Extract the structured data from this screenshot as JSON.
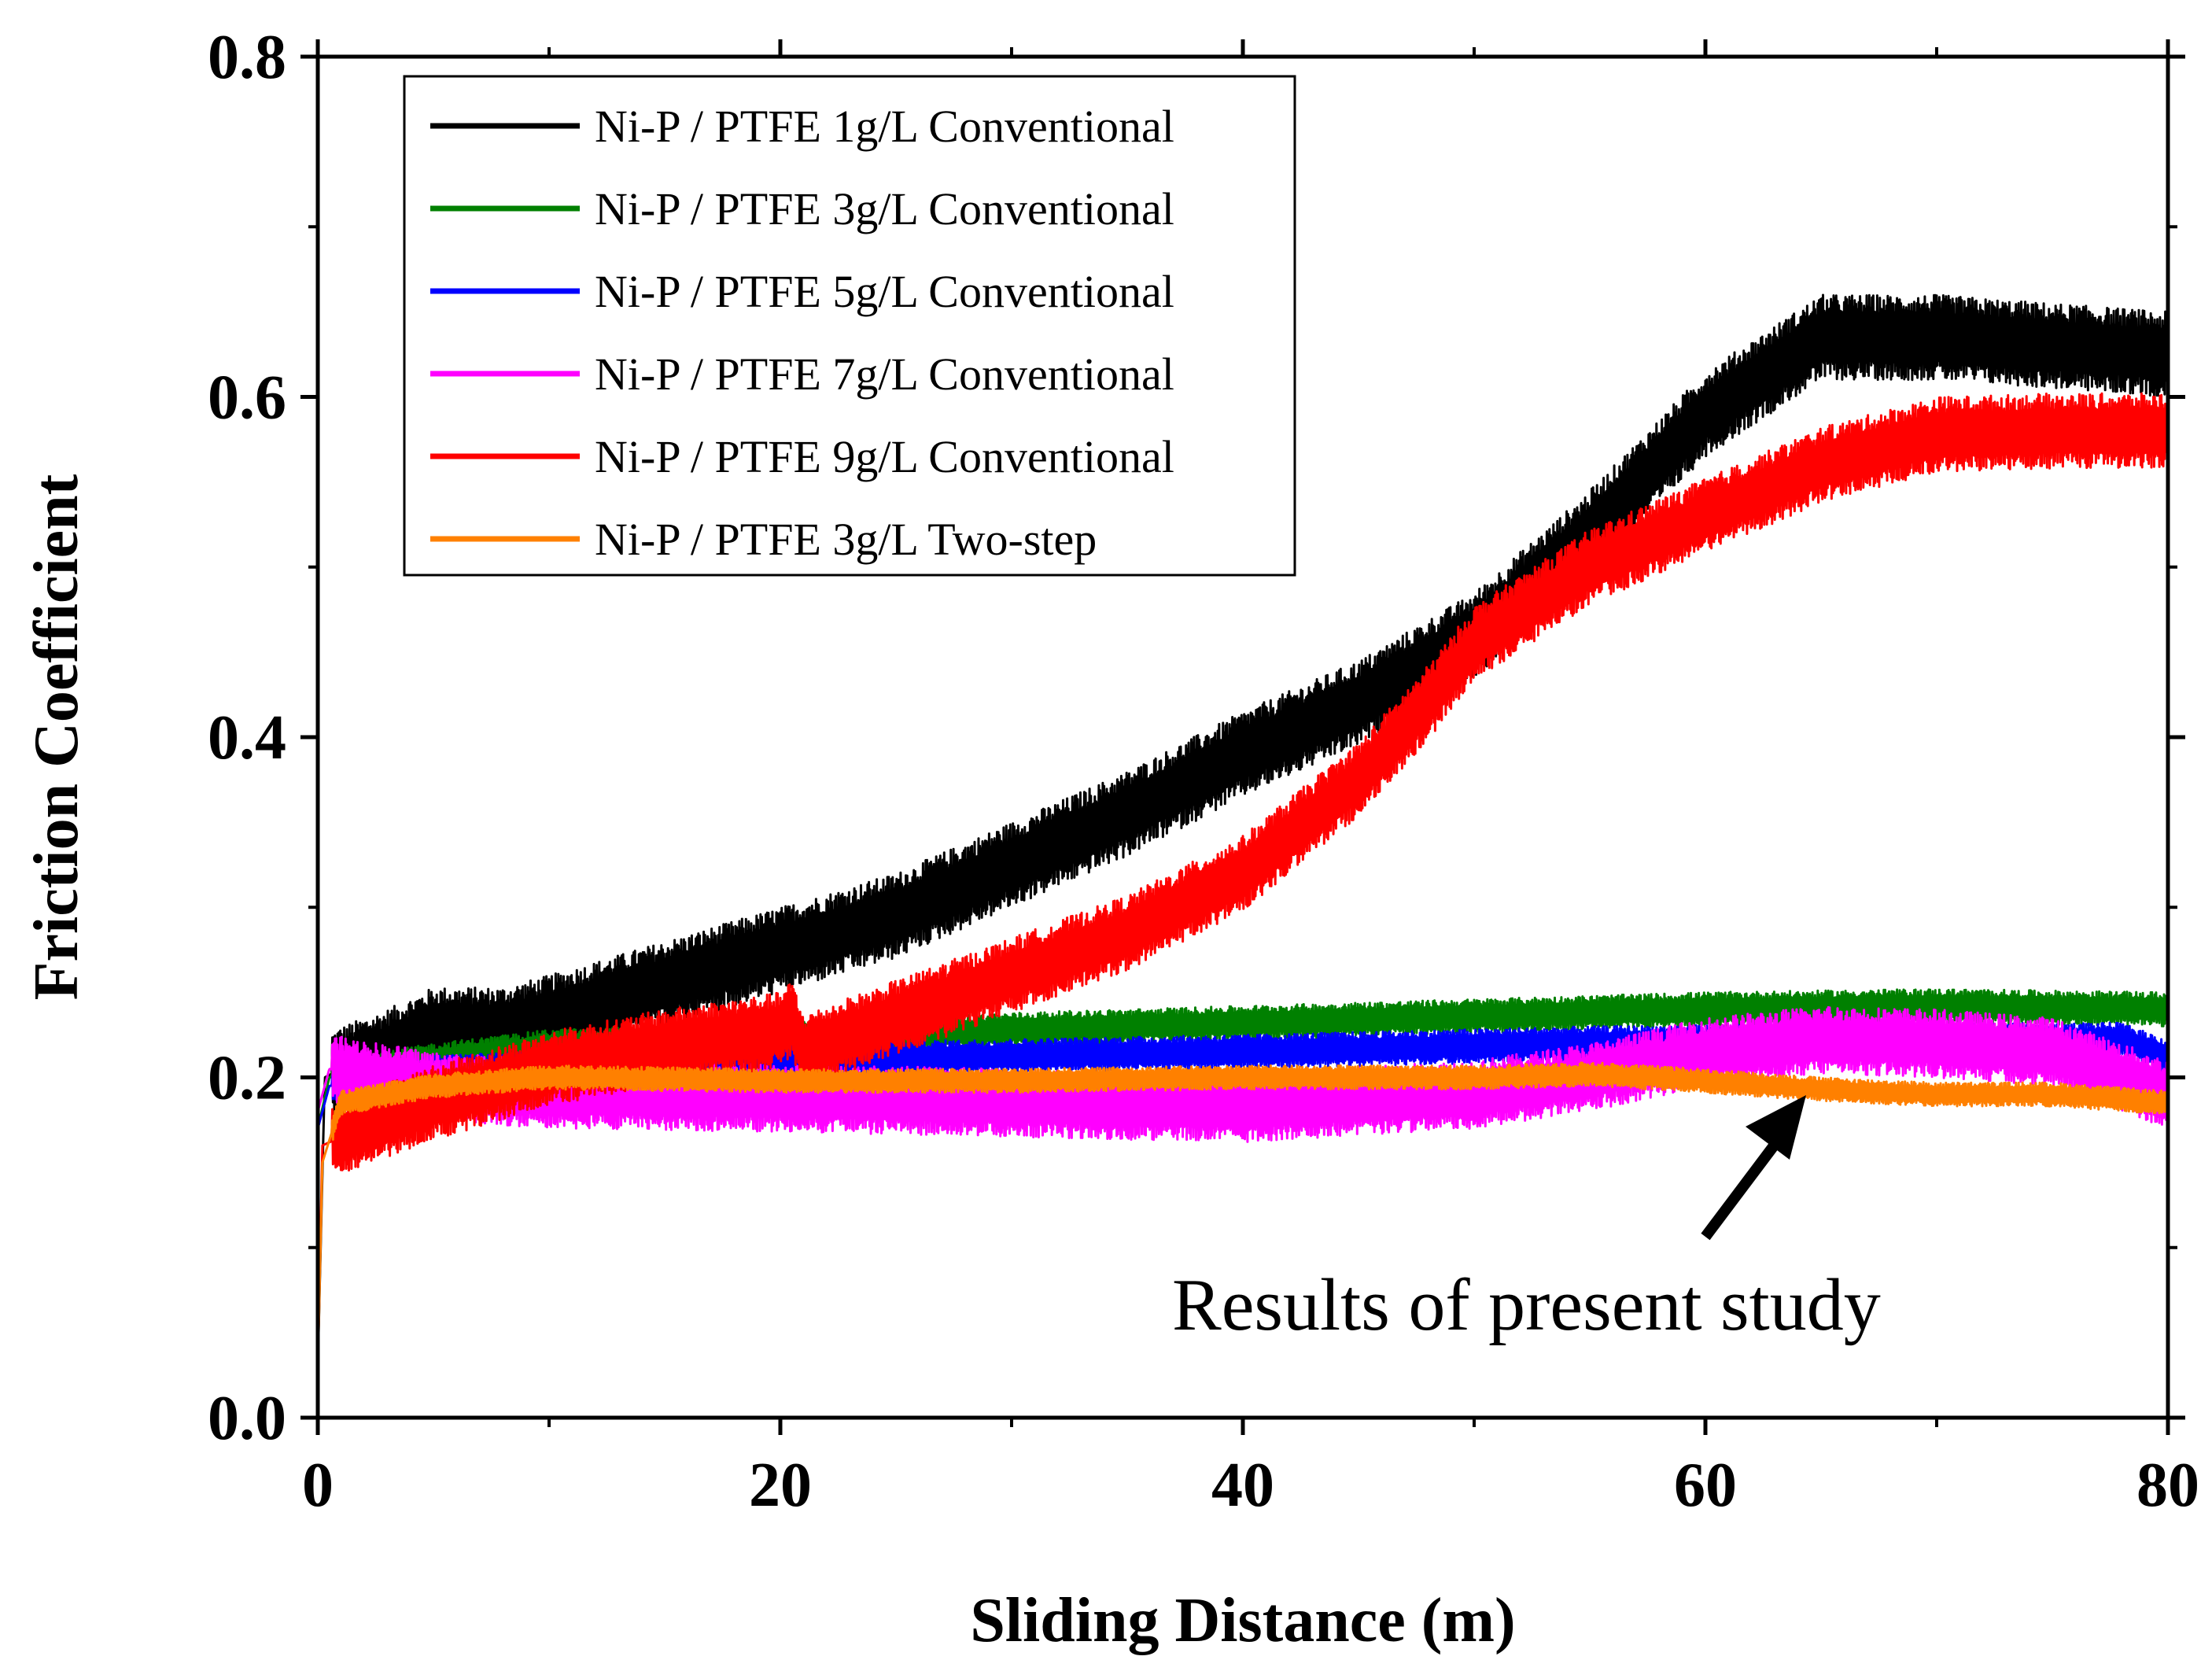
{
  "chart_data": {
    "type": "line",
    "title": "",
    "xlabel": "Sliding Distance (m)",
    "ylabel": "Friction Coefficient",
    "xlim": [
      0,
      80
    ],
    "ylim": [
      0,
      0.8
    ],
    "xticks": [
      0,
      20,
      40,
      60,
      80
    ],
    "xtick_labels": [
      "0",
      "20",
      "40",
      "60",
      "80"
    ],
    "yticks": [
      0.0,
      0.2,
      0.4,
      0.6,
      0.8
    ],
    "ytick_labels": [
      "0.0",
      "0.2",
      "0.4",
      "0.6",
      "0.8"
    ],
    "grid": false,
    "legend_position": "top-left",
    "series": [
      {
        "name": "Ni-P / PTFE 1g/L Conventional",
        "color": "#000000",
        "noise_band": 0.025,
        "points": [
          [
            0,
            0.03
          ],
          [
            0.3,
            0.2
          ],
          [
            1,
            0.205
          ],
          [
            3,
            0.215
          ],
          [
            5,
            0.228
          ],
          [
            8,
            0.228
          ],
          [
            10,
            0.235
          ],
          [
            15,
            0.255
          ],
          [
            20,
            0.275
          ],
          [
            25,
            0.295
          ],
          [
            30,
            0.325
          ],
          [
            35,
            0.355
          ],
          [
            40,
            0.39
          ],
          [
            45,
            0.42
          ],
          [
            50,
            0.46
          ],
          [
            55,
            0.52
          ],
          [
            60,
            0.59
          ],
          [
            65,
            0.635
          ],
          [
            70,
            0.635
          ],
          [
            75,
            0.63
          ],
          [
            80,
            0.625
          ]
        ]
      },
      {
        "name": "Ni-P / PTFE 3g/L Conventional",
        "color": "#008000",
        "noise_band": 0.01,
        "points": [
          [
            0,
            0.17
          ],
          [
            0.5,
            0.2
          ],
          [
            5,
            0.21
          ],
          [
            10,
            0.218
          ],
          [
            20,
            0.222
          ],
          [
            30,
            0.228
          ],
          [
            40,
            0.232
          ],
          [
            50,
            0.236
          ],
          [
            60,
            0.24
          ],
          [
            70,
            0.242
          ],
          [
            80,
            0.24
          ]
        ]
      },
      {
        "name": "Ni-P / PTFE 5g/L Conventional",
        "color": "#0000ff",
        "noise_band": 0.01,
        "points": [
          [
            0,
            0.17
          ],
          [
            0.5,
            0.195
          ],
          [
            5,
            0.203
          ],
          [
            20,
            0.21
          ],
          [
            40,
            0.215
          ],
          [
            55,
            0.22
          ],
          [
            70,
            0.222
          ],
          [
            78,
            0.222
          ],
          [
            80,
            0.212
          ]
        ]
      },
      {
        "name": "Ni-P / PTFE 7g/L Conventional",
        "color": "#ff00ff",
        "noise_band": 0.02,
        "points": [
          [
            0,
            0.18
          ],
          [
            0.5,
            0.205
          ],
          [
            5,
            0.195
          ],
          [
            10,
            0.19
          ],
          [
            20,
            0.188
          ],
          [
            30,
            0.185
          ],
          [
            40,
            0.182
          ],
          [
            50,
            0.19
          ],
          [
            55,
            0.2
          ],
          [
            60,
            0.215
          ],
          [
            65,
            0.222
          ],
          [
            70,
            0.22
          ],
          [
            75,
            0.215
          ],
          [
            80,
            0.19
          ]
        ]
      },
      {
        "name": "Ni-P / PTFE 9g/L Conventional",
        "color": "#ff0000",
        "noise_band": 0.022,
        "points": [
          [
            0,
            0.03
          ],
          [
            0.2,
            0.16
          ],
          [
            1,
            0.165
          ],
          [
            5,
            0.185
          ],
          [
            10,
            0.205
          ],
          [
            15,
            0.218
          ],
          [
            20,
            0.228
          ],
          [
            20.5,
            0.235
          ],
          [
            21,
            0.215
          ],
          [
            25,
            0.235
          ],
          [
            28,
            0.25
          ],
          [
            30,
            0.26
          ],
          [
            35,
            0.285
          ],
          [
            40,
            0.32
          ],
          [
            45,
            0.375
          ],
          [
            48,
            0.42
          ],
          [
            50,
            0.455
          ],
          [
            55,
            0.5
          ],
          [
            60,
            0.53
          ],
          [
            65,
            0.56
          ],
          [
            70,
            0.578
          ],
          [
            75,
            0.58
          ],
          [
            80,
            0.58
          ]
        ]
      },
      {
        "name": "Ni-P / PTFE 3g/L Two-step",
        "color": "#ff8000",
        "noise_band": 0.007,
        "points": [
          [
            0,
            0.03
          ],
          [
            0.2,
            0.15
          ],
          [
            1,
            0.185
          ],
          [
            5,
            0.195
          ],
          [
            10,
            0.2
          ],
          [
            20,
            0.198
          ],
          [
            30,
            0.198
          ],
          [
            40,
            0.2
          ],
          [
            50,
            0.2
          ],
          [
            55,
            0.202
          ],
          [
            60,
            0.198
          ],
          [
            65,
            0.193
          ],
          [
            70,
            0.19
          ],
          [
            75,
            0.19
          ],
          [
            80,
            0.185
          ]
        ]
      }
    ],
    "annotations": [
      {
        "text": "Results of present study",
        "arrow_to": [
          64.5,
          0.2
        ]
      }
    ]
  }
}
